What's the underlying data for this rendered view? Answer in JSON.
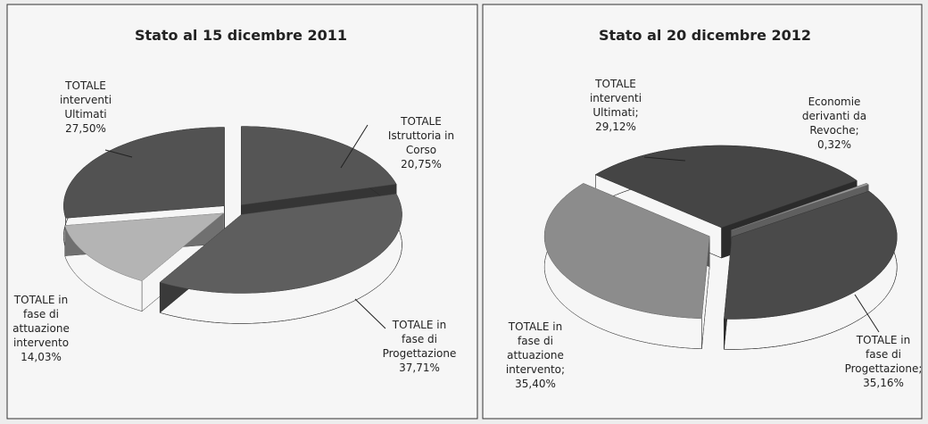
{
  "chart_data": [
    {
      "type": "pie3d",
      "title": "Stato al 15 dicembre 2011",
      "categories": [
        "TOTALE Istruttoria in Corso",
        "TOTALE in fase di Progettazione",
        "TOTALE in fase di attuazione intervento",
        "TOTALE interventi Ultimati"
      ],
      "values": [
        20.75,
        37.71,
        14.03,
        27.5
      ],
      "value_labels": [
        "20,75%",
        "37,71%",
        "14,03%",
        "27,50%"
      ],
      "colors": [
        "#555555",
        "#5e5e5e",
        "#b4b4b4",
        "#525252"
      ]
    },
    {
      "type": "pie3d",
      "title": "Stato al 20 dicembre 2012",
      "categories": [
        "Economie derivanti da Revoche;",
        "TOTALE in fase di Progettazione;",
        "TOTALE in fase di attuazione intervento;",
        "TOTALE interventi Ultimati;"
      ],
      "values": [
        0.32,
        35.16,
        35.4,
        29.12
      ],
      "value_labels": [
        "0,32%",
        "35,16%",
        "35,40%",
        "29,12%"
      ],
      "colors": [
        "#9a9a9a",
        "#4a4a4a",
        "#8c8c8c",
        "#454545"
      ]
    }
  ]
}
